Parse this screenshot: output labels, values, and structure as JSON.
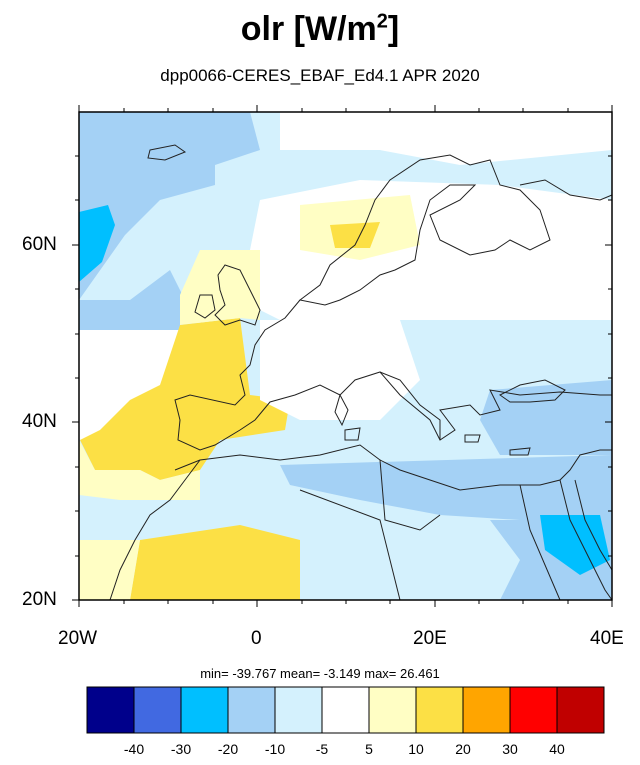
{
  "title": {
    "main": "olr [W/m",
    "sup": "2",
    "close": "]"
  },
  "subtitle": "dpp0066-CERES_EBAF_Ed4.1  APR 2020",
  "lat_labels": [
    "60N",
    "40N",
    "20N"
  ],
  "lon_labels": [
    "20W",
    "0",
    "20E",
    "40E"
  ],
  "stats": {
    "min": "-39.767",
    "mean": "-3.149",
    "max": "26.461",
    "text": "min= -39.767  mean= -3.149  max= 26.461"
  },
  "colorbar": {
    "colors": [
      "#00008b",
      "#4169e1",
      "#00bfff",
      "#a4d1f5",
      "#d4f1fd",
      "#ffffff",
      "#fffec4",
      "#fce045",
      "#ffa500",
      "#ff0000",
      "#c00000"
    ],
    "labels": [
      "-40",
      "-30",
      "-20",
      "-10",
      "-5",
      "5",
      "10",
      "20",
      "30",
      "40"
    ]
  },
  "map": {
    "extent_lon": [
      -20,
      40
    ],
    "extent_lat": [
      20,
      75
    ]
  }
}
